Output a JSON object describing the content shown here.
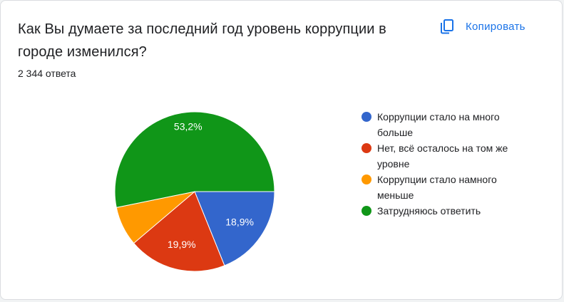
{
  "question": {
    "title": "Как Вы думаете за последний год уровень коррупции в городе изменился?",
    "responses": "2 344 ответа",
    "copy_label": "Копировать",
    "copy_icon": "copy-icon"
  },
  "chart_data": {
    "type": "pie",
    "legend_position": "right",
    "slices": [
      {
        "label": "Коррупции стало на много больше",
        "value": 18.9,
        "display": "18,9%",
        "color": "#3366cc"
      },
      {
        "label": "Нет, всё осталось на том же уровне",
        "value": 19.9,
        "display": "19,9%",
        "color": "#dc3912"
      },
      {
        "label": "Коррупции стало намного меньше",
        "value": 8.0,
        "display": "",
        "color": "#ff9900"
      },
      {
        "label": "Затрудняюсь ответить",
        "value": 53.2,
        "display": "53,2%",
        "color": "#109618"
      }
    ]
  }
}
